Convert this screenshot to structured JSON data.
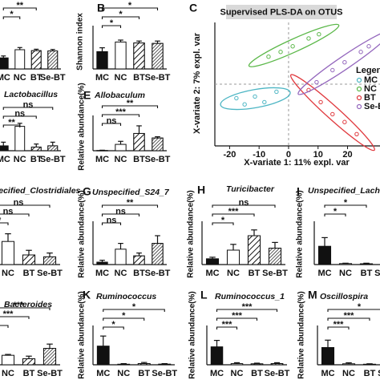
{
  "chart_data": [
    {
      "type": "bar",
      "categories": [
        "MC",
        "NC",
        "BT",
        "Se-BT"
      ],
      "values": [
        230,
        400,
        380,
        375
      ],
      "errors": [
        40,
        45,
        30,
        30
      ],
      "colors": [
        "#111111",
        "#ffffff",
        "#ffffff",
        "#ffffff"
      ],
      "hatch": [
        null,
        null,
        "sparse",
        "dense"
      ],
      "ylim": [
        0,
        800
      ],
      "annotations": [
        {
          "text": "**",
          "from": "MC",
          "to": "BT"
        },
        {
          "text": "*",
          "from": "MC",
          "to": "NC"
        }
      ]
    },
    {
      "type": "bar",
      "label": "B",
      "ylabel": "Shannon index",
      "categories": [
        "MC",
        "NC",
        "BT",
        "Se-BT"
      ],
      "values": [
        3.6,
        5.6,
        5.4,
        5.3
      ],
      "errors": [
        0.8,
        0.4,
        0.4,
        0.5
      ],
      "colors": [
        "#111111",
        "#ffffff",
        "#ffffff",
        "#ffffff"
      ],
      "hatch": [
        null,
        null,
        "sparse",
        "dense"
      ],
      "ylim": [
        0,
        8
      ],
      "annotations": [
        {
          "text": "*",
          "from": "MC",
          "to": "Se-BT"
        },
        {
          "text": "*",
          "from": "MC",
          "to": "BT"
        },
        {
          "text": "*",
          "from": "MC",
          "to": "NC"
        }
      ]
    },
    {
      "type": "scatter",
      "label": "C",
      "title": "Supervised PLS-DA on OTUS",
      "xlabel": "X-variate 1: 11% expl. var",
      "ylabel": "X-variate 2: 7% expl. var",
      "legend_title": "Legend",
      "xlim": [
        -25,
        31
      ],
      "ylim": [
        -22,
        22
      ],
      "xticks": [
        -20,
        -10,
        0,
        10,
        20
      ],
      "series": [
        {
          "name": "MC",
          "color": "#4db6c4",
          "x": [
            -17.7,
            -14.9,
            -11.4,
            -8.2,
            -4.1
          ],
          "y": [
            -5.0,
            -7.2,
            -4.4,
            -6.4,
            -2.7
          ]
        },
        {
          "name": "NC",
          "color": "#5cb84a",
          "x": [
            -6.8,
            -2.7,
            1.4,
            6.8,
            10.3
          ],
          "y": [
            9.8,
            11.5,
            13.5,
            16.3,
            17.8
          ]
        },
        {
          "name": "BT",
          "color": "#e0393e",
          "x": [
            6.8,
            10.9,
            14.9,
            19.0,
            23.1
          ],
          "y": [
            -2.1,
            -6.4,
            -10.7,
            -13.5,
            -17.8
          ]
        },
        {
          "name": "Se-BT",
          "color": "#9467bd",
          "x": [
            9.5,
            14.9,
            19.0,
            24.5,
            27.2
          ],
          "y": [
            0.7,
            5.0,
            7.8,
            11.5,
            13.5
          ]
        }
      ]
    },
    {
      "type": "bar",
      "title": "Lactobacillus",
      "categories": [
        "MC",
        "NC",
        "BT",
        "Se-BT"
      ],
      "values": [
        4,
        20,
        3,
        4
      ],
      "errors": [
        3,
        2.5,
        2.5,
        3
      ],
      "colors": [
        "#111111",
        "#ffffff",
        "#ffffff",
        "#ffffff"
      ],
      "hatch": [
        null,
        null,
        "sparse",
        "dense"
      ],
      "ylim": [
        0,
        25
      ],
      "annotations": [
        {
          "text": "ns",
          "from": "MC",
          "to": "Se-BT"
        },
        {
          "text": "ns",
          "from": "MC",
          "to": "BT"
        },
        {
          "text": "**",
          "from": "MC",
          "to": "NC"
        }
      ]
    },
    {
      "type": "bar",
      "label": "E",
      "title": "Allobaculum",
      "ylabel": "Relative abundance(%)",
      "categories": [
        "MC",
        "NC",
        "BT",
        "Se-BT"
      ],
      "values": [
        0.01,
        0.25,
        0.68,
        0.5
      ],
      "errors": [
        0.01,
        0.12,
        0.3,
        0.05
      ],
      "colors": [
        "#111111",
        "#ffffff",
        "#ffffff",
        "#ffffff"
      ],
      "hatch": [
        null,
        null,
        "sparse",
        "dense"
      ],
      "ylim": [
        0,
        1.2
      ],
      "annotations": [
        {
          "text": "**",
          "from": "MC",
          "to": "Se-BT"
        },
        {
          "text": "***",
          "from": "MC",
          "to": "BT"
        },
        {
          "text": "ns",
          "from": "MC",
          "to": "NC"
        }
      ]
    },
    {
      "type": "bar",
      "title": "Unspecified_Clostridiales",
      "categories": [
        "MC",
        "NC",
        "BT",
        "Se-BT"
      ],
      "values": [
        3,
        6,
        2.5,
        2
      ],
      "errors": [
        1,
        2,
        1.2,
        1
      ],
      "colors": [
        "#111111",
        "#ffffff",
        "#ffffff",
        "#ffffff"
      ],
      "hatch": [
        null,
        null,
        "sparse",
        "dense"
      ],
      "ylim": [
        0,
        10
      ],
      "annotations": [
        {
          "text": "ns",
          "from": "MC",
          "to": "Se-BT"
        },
        {
          "text": "ns",
          "from": "MC",
          "to": "BT"
        },
        {
          "text": "**",
          "from": "MC",
          "to": "NC"
        }
      ]
    },
    {
      "type": "bar",
      "label": "G",
      "title": "Unspecified_S24_7",
      "ylabel": "Relative abundance(%)",
      "categories": [
        "MC",
        "NC",
        "BT",
        "Se-BT"
      ],
      "values": [
        0.025,
        0.16,
        0.09,
        0.22
      ],
      "errors": [
        0.02,
        0.06,
        0.03,
        0.08
      ],
      "colors": [
        "#111111",
        "#ffffff",
        "#ffffff",
        "#ffffff"
      ],
      "hatch": [
        null,
        null,
        "sparse",
        "dense"
      ],
      "ylim": [
        0,
        0.4
      ],
      "annotations": [
        {
          "text": "**",
          "from": "MC",
          "to": "Se-BT"
        },
        {
          "text": "ns",
          "from": "MC",
          "to": "BT"
        },
        {
          "text": "ns",
          "from": "MC",
          "to": "NC"
        }
      ]
    },
    {
      "type": "bar",
      "label": "H",
      "title": "Turicibacter",
      "ylabel": "Relative abundance(%)",
      "categories": [
        "MC",
        "NC",
        "BT",
        "Se-BT"
      ],
      "values": [
        0.03,
        0.075,
        0.15,
        0.085
      ],
      "errors": [
        0.008,
        0.03,
        0.03,
        0.03
      ],
      "colors": [
        "#111111",
        "#ffffff",
        "#ffffff",
        "#ffffff"
      ],
      "hatch": [
        null,
        null,
        "sparse",
        "dense"
      ],
      "ylim": [
        0,
        0.2
      ],
      "annotations": [
        {
          "text": "ns",
          "from": "MC",
          "to": "Se-BT"
        },
        {
          "text": "***",
          "from": "MC",
          "to": "BT"
        },
        {
          "text": "*",
          "from": "MC",
          "to": "NC"
        }
      ]
    },
    {
      "type": "bar",
      "label": "I",
      "title": "Unspecified_Lachnospiraceae",
      "ylabel": "Relative abundance(%)",
      "categories": [
        "MC",
        "NC",
        "BT",
        "Se-BT"
      ],
      "values": [
        0.095,
        0.005,
        0.004,
        0.005
      ],
      "errors": [
        0.045,
        0.002,
        0.003,
        0.002
      ],
      "colors": [
        "#111111",
        "#ffffff",
        "#ffffff",
        "#ffffff"
      ],
      "hatch": [
        null,
        null,
        "sparse",
        "dense"
      ],
      "ylim": [
        0,
        0.2
      ],
      "annotations": [
        {
          "text": "*",
          "from": "MC",
          "to": "BT"
        },
        {
          "text": "*",
          "from": "MC",
          "to": "NC"
        }
      ]
    },
    {
      "type": "bar",
      "title": "Bacteroides",
      "categories": [
        "MC",
        "NC",
        "BT",
        "Se-BT"
      ],
      "values": [
        0.3,
        1.1,
        0.7,
        1.9
      ],
      "errors": [
        0.1,
        0.1,
        0.3,
        0.5
      ],
      "colors": [
        "#111111",
        "#ffffff",
        "#ffffff",
        "#ffffff"
      ],
      "hatch": [
        null,
        null,
        "sparse",
        "dense"
      ],
      "ylim": [
        0,
        4
      ],
      "annotations": [
        {
          "text": "***",
          "from": "MC",
          "to": "Se-BT"
        },
        {
          "text": "***",
          "from": "MC",
          "to": "BT"
        },
        {
          "text": "*",
          "from": "MC",
          "to": "NC"
        }
      ]
    },
    {
      "type": "bar",
      "label": "K",
      "title": "Ruminococcus",
      "ylabel": "Relative abundance(%)",
      "categories": [
        "MC",
        "NC",
        "BT",
        "Se-BT"
      ],
      "values": [
        0.065,
        0.002,
        0.004,
        0.002
      ],
      "errors": [
        0.035,
        0.002,
        0.004,
        0.002
      ],
      "colors": [
        "#111111",
        "#ffffff",
        "#ffffff",
        "#ffffff"
      ],
      "hatch": [
        null,
        null,
        "sparse",
        "dense"
      ],
      "ylim": [
        0,
        0.12
      ],
      "annotations": [
        {
          "text": "*",
          "from": "MC",
          "to": "Se-BT"
        },
        {
          "text": "*",
          "from": "MC",
          "to": "BT"
        },
        {
          "text": "*",
          "from": "MC",
          "to": "NC"
        }
      ]
    },
    {
      "type": "bar",
      "label": "L",
      "title": "Ruminococcus_1",
      "ylabel": "Relative abundance(%)",
      "categories": [
        "MC",
        "NC",
        "BT",
        "Se-BT"
      ],
      "values": [
        0.078,
        0.005,
        0.004,
        0.005
      ],
      "errors": [
        0.028,
        0.004,
        0.003,
        0.004
      ],
      "colors": [
        "#111111",
        "#ffffff",
        "#ffffff",
        "#ffffff"
      ],
      "hatch": [
        null,
        null,
        "sparse",
        "dense"
      ],
      "ylim": [
        0,
        0.15
      ],
      "annotations": [
        {
          "text": "***",
          "from": "MC",
          "to": "Se-BT"
        },
        {
          "text": "***",
          "from": "MC",
          "to": "BT"
        },
        {
          "text": "***",
          "from": "MC",
          "to": "NC"
        }
      ]
    },
    {
      "type": "bar",
      "label": "M",
      "title": "Oscillospira",
      "ylabel": "Relative abundance(%)",
      "categories": [
        "MC",
        "NC",
        "BT",
        "Se-BT"
      ],
      "values": [
        0.035,
        0.002,
        0.001,
        0.002
      ],
      "errors": [
        0.015,
        0.002,
        0.001,
        0.002
      ],
      "colors": [
        "#111111",
        "#ffffff",
        "#ffffff",
        "#ffffff"
      ],
      "hatch": [
        null,
        null,
        "sparse",
        "dense"
      ],
      "ylim": [
        0,
        0.07
      ],
      "annotations": [
        {
          "text": "*",
          "from": "MC",
          "to": "Se-BT"
        },
        {
          "text": "***",
          "from": "MC",
          "to": "BT"
        },
        {
          "text": "***",
          "from": "MC",
          "to": "NC"
        }
      ]
    }
  ]
}
